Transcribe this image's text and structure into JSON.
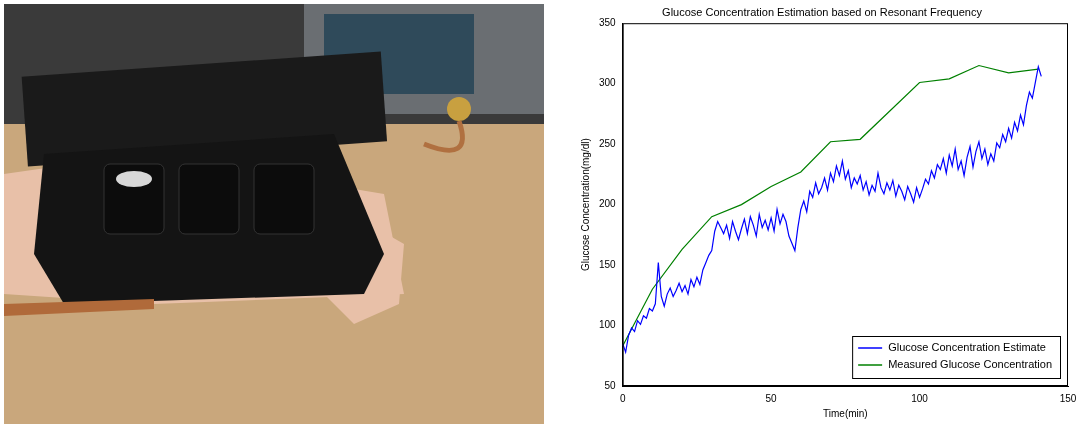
{
  "chart_data": {
    "type": "line",
    "title": "Glucose Concentration Estimation based on Resonant Frequency",
    "x_label": "Time(min)",
    "y_label": "Glucose Concentration(mg/dl)",
    "xlim": [
      0,
      150
    ],
    "xticks": [
      0,
      50,
      100,
      150
    ],
    "ylim": [
      50,
      350
    ],
    "yticks": [
      50,
      100,
      150,
      200,
      250,
      300,
      350
    ],
    "grid": false,
    "legend": "lower right",
    "series": [
      {
        "name": "Glucose Concentration Estimate",
        "color": "#0000ff",
        "line_style": "solid",
        "marker": "none",
        "x": [
          0,
          1,
          2,
          3,
          4,
          5,
          6,
          7,
          8,
          9,
          10,
          11,
          12,
          13,
          14,
          15,
          16,
          17,
          18,
          19,
          20,
          21,
          22,
          23,
          24,
          25,
          26,
          27,
          28,
          29,
          30,
          31,
          32,
          33,
          34,
          35,
          36,
          37,
          38,
          39,
          40,
          41,
          42,
          43,
          44,
          45,
          46,
          47,
          48,
          49,
          50,
          51,
          52,
          53,
          54,
          55,
          56,
          57,
          58,
          59,
          60,
          61,
          62,
          63,
          64,
          65,
          66,
          67,
          68,
          69,
          70,
          71,
          72,
          73,
          74,
          75,
          76,
          77,
          78,
          79,
          80,
          81,
          82,
          83,
          84,
          85,
          86,
          87,
          88,
          89,
          90,
          91,
          92,
          93,
          94,
          95,
          96,
          97,
          98,
          99,
          100,
          101,
          102,
          103,
          104,
          105,
          106,
          107,
          108,
          109,
          110,
          111,
          112,
          113,
          114,
          115,
          116,
          117,
          118,
          119,
          120,
          121,
          122,
          123,
          124,
          125,
          126,
          127,
          128,
          129,
          130,
          131,
          132,
          133,
          134,
          135,
          136,
          137,
          138,
          139,
          140,
          141
        ],
        "values": [
          85,
          78,
          92,
          98,
          95,
          104,
          101,
          108,
          106,
          114,
          112,
          118,
          152,
          124,
          116,
          126,
          131,
          124,
          129,
          135,
          128,
          133,
          126,
          138,
          132,
          140,
          134,
          146,
          152,
          158,
          162,
          178,
          186,
          181,
          176,
          183,
          172,
          186,
          178,
          171,
          180,
          188,
          176,
          190,
          183,
          174,
          192,
          181,
          187,
          179,
          189,
          178,
          196,
          184,
          192,
          186,
          174,
          168,
          162,
          181,
          196,
          203,
          194,
          211,
          206,
          218,
          209,
          214,
          222,
          212,
          226,
          219,
          232,
          224,
          236,
          221,
          228,
          214,
          222,
          217,
          224,
          212,
          219,
          208,
          216,
          211,
          226,
          214,
          209,
          218,
          212,
          220,
          207,
          216,
          211,
          204,
          215,
          209,
          202,
          214,
          206,
          213,
          221,
          217,
          228,
          222,
          233,
          229,
          238,
          226,
          241,
          232,
          246,
          229,
          236,
          224,
          239,
          248,
          231,
          244,
          252,
          238,
          246,
          233,
          242,
          236,
          251,
          247,
          258,
          252,
          263,
          255,
          268,
          261,
          274,
          266,
          282,
          293,
          288,
          301,
          314,
          306
        ]
      },
      {
        "name": "Measured Glucose Concentration",
        "color": "#008000",
        "line_style": "solid",
        "marker": "none",
        "x": [
          0,
          10,
          20,
          30,
          40,
          50,
          60,
          70,
          80,
          100,
          110,
          120,
          130,
          140
        ],
        "values": [
          83,
          130,
          163,
          190,
          200,
          215,
          227,
          252,
          254,
          301,
          304,
          315,
          309,
          312
        ]
      }
    ]
  }
}
